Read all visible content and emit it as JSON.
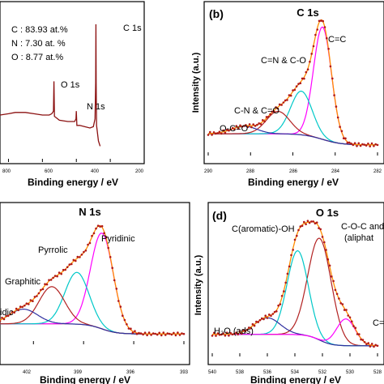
{
  "chart_data": [
    {
      "panel": "survey",
      "type": "line",
      "title": "",
      "xlabel": "Binding energy / eV",
      "ylabel": "",
      "xlim": [
        850,
        0
      ],
      "x_ticks": [
        "800",
        "600",
        "400",
        "200"
      ],
      "composition": [
        {
          "label": "C : 83.93 at.%"
        },
        {
          "label": "N : 7.30 at. %"
        },
        {
          "label": "O : 8.77 at.%"
        }
      ],
      "peak_labels": [
        {
          "text": "O 1s",
          "x": 532
        },
        {
          "text": "N 1s",
          "x": 400
        },
        {
          "text": "C 1s",
          "x": 284.5
        }
      ],
      "series": [
        {
          "color": "#8b1010",
          "points": [
            [
              850,
              0.3
            ],
            [
              800,
              0.31
            ],
            [
              760,
              0.32
            ],
            [
              700,
              0.32
            ],
            [
              650,
              0.31
            ],
            [
              600,
              0.3
            ],
            [
              560,
              0.3
            ],
            [
              545,
              0.31
            ],
            [
              535,
              0.33
            ],
            [
              532,
              0.56
            ],
            [
              529,
              0.29
            ],
            [
              500,
              0.26
            ],
            [
              450,
              0.25
            ],
            [
              410,
              0.25
            ],
            [
              402,
              0.27
            ],
            [
              400,
              0.33
            ],
            [
              397,
              0.22
            ],
            [
              380,
              0.22
            ],
            [
              350,
              0.21
            ],
            [
              320,
              0.2
            ],
            [
              300,
              0.21
            ],
            [
              290,
              0.27
            ],
            [
              286,
              0.55
            ],
            [
              284.5,
              1.0
            ],
            [
              283,
              0.55
            ],
            [
              281,
              0.22
            ],
            [
              270,
              0.1
            ],
            [
              260,
              0.06
            ]
          ]
        }
      ]
    },
    {
      "panel": "(b)",
      "type": "line",
      "title": "C 1s",
      "xlabel": "Binding energy / eV",
      "ylabel": "Intensity (a.u.)",
      "xlim": [
        290,
        282
      ],
      "x_ticks": [
        "290",
        "288",
        "286",
        "284",
        "282"
      ],
      "peak_labels": [
        {
          "text": "C=C",
          "x": 284.5
        },
        {
          "text": "C=N & C-O",
          "x": 285.8
        },
        {
          "text": "C-N & C=O",
          "x": 286.9
        },
        {
          "text": "O-C=O",
          "x": 288.4
        }
      ],
      "components": [
        {
          "color": "#ff00ff",
          "center": 284.6,
          "height": 0.9,
          "fwhm": 1.0
        },
        {
          "color": "#00c8c8",
          "center": 285.6,
          "height": 0.35,
          "fwhm": 1.2
        },
        {
          "color": "#b22222",
          "center": 286.7,
          "height": 0.18,
          "fwhm": 1.3
        },
        {
          "color": "#3030a0",
          "center": 288.3,
          "height": 0.06,
          "fwhm": 1.4
        }
      ]
    },
    {
      "panel": "(c)",
      "type": "line",
      "title": "N 1s",
      "xlabel": "Binding energy / eV",
      "ylabel": "",
      "xlim": [
        404,
        393
      ],
      "x_ticks": [
        "402",
        "399",
        "396",
        "393"
      ],
      "peak_labels": [
        {
          "text": "Pyridinic",
          "x": 397.7
        },
        {
          "text": "Pyrrolic",
          "x": 399.3
        },
        {
          "text": "Graphitic",
          "x": 400.9
        },
        {
          "text": "idic",
          "x": 402.2
        }
      ],
      "components": [
        {
          "color": "#ff00ff",
          "center": 397.9,
          "height": 0.85,
          "fwhm": 1.6
        },
        {
          "color": "#00c8c8",
          "center": 399.4,
          "height": 0.46,
          "fwhm": 1.7
        },
        {
          "color": "#b22222",
          "center": 400.9,
          "height": 0.33,
          "fwhm": 1.8
        },
        {
          "color": "#3030a0",
          "center": 402.6,
          "height": 0.13,
          "fwhm": 2.0
        }
      ]
    },
    {
      "panel": "(d)",
      "type": "line",
      "title": "O 1s",
      "xlabel": "Binding energy / eV",
      "ylabel": "Intensity (a.u.)",
      "xlim": [
        540,
        528
      ],
      "x_ticks": [
        "540",
        "538",
        "536",
        "534",
        "532",
        "530",
        "528"
      ],
      "peak_labels": [
        {
          "text": "C-O-C and",
          "x": 532
        },
        {
          "text": "(aliphat",
          "x": 531
        },
        {
          "text": "C(aromatic)-OH",
          "x": 534.5
        },
        {
          "text": "H₂O (ads)",
          "x": 536.5
        },
        {
          "text": "C=",
          "x": 529.5
        }
      ],
      "components": [
        {
          "color": "#b22222",
          "center": 532.2,
          "height": 0.8,
          "fwhm": 2.0
        },
        {
          "color": "#00c8c8",
          "center": 533.8,
          "height": 0.66,
          "fwhm": 1.8
        },
        {
          "color": "#3030a0",
          "center": 536.0,
          "height": 0.13,
          "fwhm": 2.2
        },
        {
          "color": "#ff00ff",
          "center": 530.3,
          "height": 0.21,
          "fwhm": 1.6
        }
      ]
    }
  ]
}
